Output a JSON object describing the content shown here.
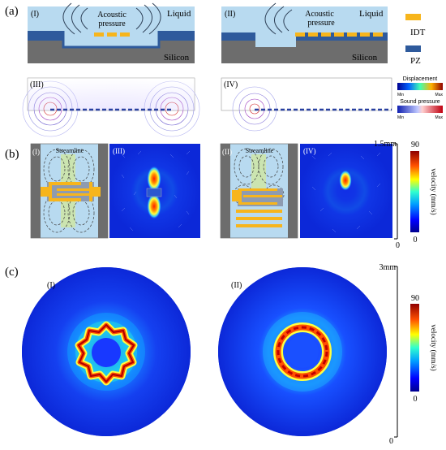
{
  "panel_a": {
    "label": "(a)",
    "sub_i": "(I)",
    "sub_ii": "(II)",
    "sub_iii": "(III)",
    "sub_iv": "(IV)",
    "acoustic_1": "Acoustic",
    "pressure_1": "pressure",
    "acoustic_2": "Acoustic",
    "pressure_2": "pressure",
    "liquid_1": "Liquid",
    "liquid_2": "Liquid",
    "silicon_1": "Silicon",
    "silicon_2": "Silicon",
    "legend_idt": "IDT",
    "legend_pz": "PZ",
    "disp_title": "Displacement",
    "disp_min": "Min",
    "disp_max": "Max",
    "sound_title": "Sound pressure",
    "sound_min": "Min",
    "sound_max": "Max",
    "colors": {
      "idt": "#f7b51c",
      "pz": "#2e5a9c",
      "silicon": "#6d6d6d",
      "liquid": "#b8daf0"
    }
  },
  "panel_b": {
    "label": "(b)",
    "sub_i": "(I)",
    "sub_ii": "(II)",
    "sub_iii": "(III)",
    "sub_iv": "(IV)",
    "streamline_1": "Streamline",
    "streamline_2": "Streamline",
    "scale_top": "1.5mm",
    "scale_bottom": "0",
    "cbar_max": "90",
    "cbar_min": "0",
    "cbar_label": "velocity (mm/s)"
  },
  "panel_c": {
    "label": "(c)",
    "sub_i": "(I)",
    "sub_ii": "(II)",
    "scale_top": "3mm",
    "scale_bottom": "0",
    "cbar_max": "90",
    "cbar_min": "0",
    "cbar_label": "velocity (mm/s)"
  }
}
